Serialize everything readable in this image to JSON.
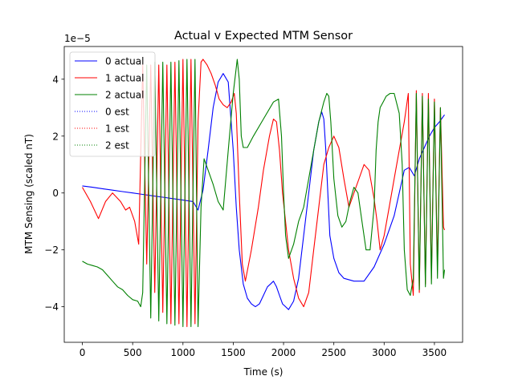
{
  "chart_data": {
    "type": "line",
    "title": "Actual v Expected MTM Sensor",
    "xlabel": "Time (s)",
    "ylabel": "MTM Sensing (scaled nT)",
    "y_offset_text": "1e−5",
    "y_scale": 1e-05,
    "xlim": [
      -180,
      3780
    ],
    "ylim": [
      -5.25,
      5.15
    ],
    "x_ticks": [
      0,
      500,
      1000,
      1500,
      2000,
      2500,
      3000,
      3500
    ],
    "x_tick_labels": [
      "0",
      "500",
      "1000",
      "1500",
      "2000",
      "2500",
      "3000",
      "3500"
    ],
    "y_ticks": [
      -4,
      -2,
      0,
      2,
      4
    ],
    "y_tick_labels": [
      "−4",
      "−2",
      "0",
      "2",
      "4"
    ],
    "grid": false,
    "legend_position": "top-left",
    "series": [
      {
        "name": "0 actual",
        "color": "#0000ff",
        "style": "solid",
        "x": [
          0,
          100,
          200,
          300,
          400,
          500,
          600,
          700,
          800,
          900,
          1000,
          1100,
          1150,
          1200,
          1250,
          1300,
          1350,
          1400,
          1450,
          1500,
          1530,
          1560,
          1600,
          1640,
          1680,
          1720,
          1760,
          1800,
          1840,
          1870,
          1900,
          1930,
          1960,
          1990,
          2020,
          2050,
          2100,
          2150,
          2200,
          2250,
          2300,
          2350,
          2380,
          2400,
          2420,
          2440,
          2460,
          2500,
          2550,
          2600,
          2700,
          2800,
          2900,
          3000,
          3100,
          3150,
          3200,
          3250,
          3300,
          3350,
          3400,
          3450,
          3500,
          3550,
          3600
        ],
        "y": [
          0.25,
          0.2,
          0.15,
          0.1,
          0.05,
          0.0,
          -0.05,
          -0.1,
          -0.15,
          -0.2,
          -0.25,
          -0.3,
          -0.6,
          0.1,
          1.5,
          3.0,
          3.9,
          4.2,
          3.9,
          1.5,
          -0.5,
          -2.0,
          -3.2,
          -3.7,
          -3.9,
          -4.0,
          -3.9,
          -3.6,
          -3.3,
          -3.2,
          -3.1,
          -3.3,
          -3.6,
          -3.9,
          -4.0,
          -4.1,
          -3.8,
          -3.0,
          -1.5,
          0.0,
          1.5,
          2.5,
          2.85,
          2.6,
          1.5,
          0.0,
          -1.5,
          -2.3,
          -2.8,
          -3.0,
          -3.1,
          -3.1,
          -2.6,
          -1.8,
          -0.8,
          0.0,
          0.8,
          0.9,
          0.6,
          1.2,
          1.6,
          2.0,
          2.3,
          2.5,
          2.75
        ]
      },
      {
        "name": "1 actual",
        "color": "#ff0000",
        "style": "solid",
        "x": [
          0,
          80,
          160,
          230,
          300,
          380,
          430,
          470,
          520,
          560,
          600,
          640,
          680,
          720,
          760,
          800,
          840,
          880,
          920,
          960,
          1000,
          1040,
          1080,
          1120,
          1150,
          1180,
          1200,
          1240,
          1280,
          1320,
          1360,
          1400,
          1440,
          1480,
          1510,
          1530,
          1560,
          1590,
          1620,
          1680,
          1750,
          1800,
          1860,
          1900,
          1930,
          1960,
          1990,
          2050,
          2100,
          2150,
          2200,
          2250,
          2300,
          2350,
          2400,
          2450,
          2500,
          2550,
          2600,
          2650,
          2700,
          2750,
          2800,
          2850,
          2900,
          2930,
          2960,
          3000,
          3050,
          3100,
          3150,
          3200,
          3240,
          3260,
          3290,
          3320,
          3350,
          3380,
          3410,
          3440,
          3470,
          3500,
          3530,
          3560,
          3590,
          3600
        ],
        "y": [
          0.2,
          -0.3,
          -0.9,
          -0.3,
          0.0,
          -0.3,
          -0.6,
          -0.5,
          -1.0,
          -1.8,
          4.5,
          -2.5,
          4.5,
          -3.5,
          4.5,
          -4.2,
          4.5,
          -4.6,
          4.6,
          -4.6,
          4.7,
          -4.7,
          4.7,
          -4.6,
          2.5,
          4.6,
          4.7,
          4.5,
          4.2,
          3.8,
          3.3,
          3.1,
          3.0,
          3.2,
          3.5,
          2.8,
          0.0,
          -2.5,
          -3.1,
          -2.0,
          -0.5,
          0.8,
          2.0,
          2.6,
          2.5,
          1.5,
          0.0,
          -2.0,
          -3.0,
          -3.7,
          -4.0,
          -3.5,
          -2.0,
          -0.5,
          1.0,
          1.6,
          2.0,
          1.6,
          0.5,
          -0.5,
          0.0,
          0.5,
          1.0,
          0.8,
          -0.2,
          -1.0,
          -2.0,
          -1.5,
          -0.5,
          0.5,
          1.5,
          2.5,
          3.5,
          -2.5,
          -3.6,
          3.6,
          -3.5,
          3.5,
          -3.2,
          3.5,
          -3.0,
          3.3,
          -2.6,
          3.0,
          -1.2,
          -1.3
        ]
      },
      {
        "name": "2 actual",
        "color": "#008000",
        "style": "solid",
        "x": [
          0,
          50,
          100,
          150,
          200,
          250,
          300,
          350,
          400,
          450,
          500,
          550,
          580,
          600,
          640,
          680,
          720,
          760,
          800,
          840,
          880,
          920,
          960,
          1000,
          1040,
          1080,
          1120,
          1150,
          1180,
          1210,
          1240,
          1300,
          1350,
          1400,
          1450,
          1500,
          1540,
          1560,
          1580,
          1600,
          1640,
          1700,
          1800,
          1900,
          1950,
          1980,
          2000,
          2020,
          2050,
          2100,
          2150,
          2200,
          2250,
          2300,
          2350,
          2400,
          2430,
          2450,
          2470,
          2500,
          2540,
          2580,
          2620,
          2660,
          2700,
          2740,
          2780,
          2820,
          2860,
          2900,
          2920,
          2940,
          2960,
          2990,
          3020,
          3060,
          3100,
          3150,
          3180,
          3200,
          3230,
          3260,
          3290,
          3320,
          3350,
          3380,
          3410,
          3440,
          3470,
          3500,
          3530,
          3560,
          3590,
          3600
        ],
        "y": [
          -2.4,
          -2.5,
          -2.55,
          -2.6,
          -2.7,
          -2.9,
          -3.1,
          -3.3,
          -3.4,
          -3.6,
          -3.75,
          -3.8,
          -4.0,
          -3.5,
          4.5,
          -4.4,
          4.6,
          -4.5,
          4.6,
          -4.6,
          4.6,
          -4.65,
          4.65,
          -4.7,
          4.7,
          -4.7,
          4.7,
          -4.7,
          -0.5,
          1.2,
          0.9,
          0.3,
          -0.3,
          -0.6,
          1.5,
          3.5,
          4.7,
          4.0,
          2.0,
          1.6,
          1.6,
          2.0,
          2.6,
          3.2,
          3.3,
          2.0,
          0.0,
          -1.5,
          -2.3,
          -1.8,
          -1.0,
          -0.5,
          0.5,
          1.5,
          2.5,
          3.2,
          3.5,
          3.4,
          2.5,
          0.5,
          -0.8,
          -1.2,
          -1.0,
          -0.3,
          0.2,
          0.0,
          -1.0,
          -2.0,
          -2.0,
          -0.5,
          1.5,
          2.5,
          3.0,
          3.2,
          3.4,
          3.5,
          3.5,
          2.8,
          1.0,
          -2.0,
          -3.4,
          -3.6,
          -3.0,
          3.5,
          -3.4,
          3.4,
          -3.3,
          3.3,
          -3.2,
          3.2,
          -3.0,
          3.0,
          -3.0,
          -2.7
        ]
      },
      {
        "name": "0 est",
        "color": "#0000ff",
        "style": "dotted",
        "x": [],
        "y": []
      },
      {
        "name": "1 est",
        "color": "#ff0000",
        "style": "dotted",
        "x": [],
        "y": []
      },
      {
        "name": "2 est",
        "color": "#008000",
        "style": "dotted",
        "x": [],
        "y": []
      }
    ]
  }
}
